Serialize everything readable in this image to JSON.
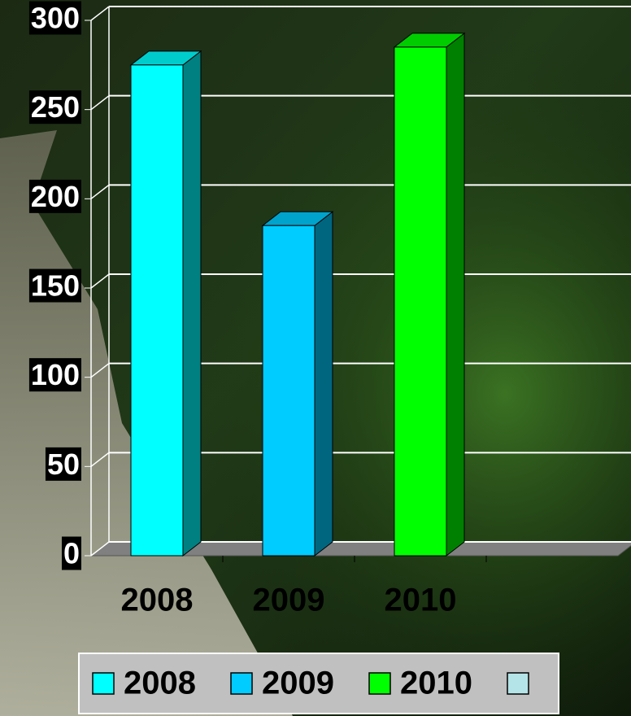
{
  "chart_data": {
    "type": "bar3d",
    "categories": [
      "2008",
      "2009",
      "2010",
      null
    ],
    "values": [
      275,
      185,
      285,
      null
    ],
    "colors": [
      "#00ffff",
      "#00ccff",
      "#00ff00",
      "#b4e4e8"
    ],
    "ylim": [
      0,
      300
    ],
    "yticks": [
      0,
      50,
      100,
      150,
      200,
      250,
      300
    ],
    "grid": true
  }
}
